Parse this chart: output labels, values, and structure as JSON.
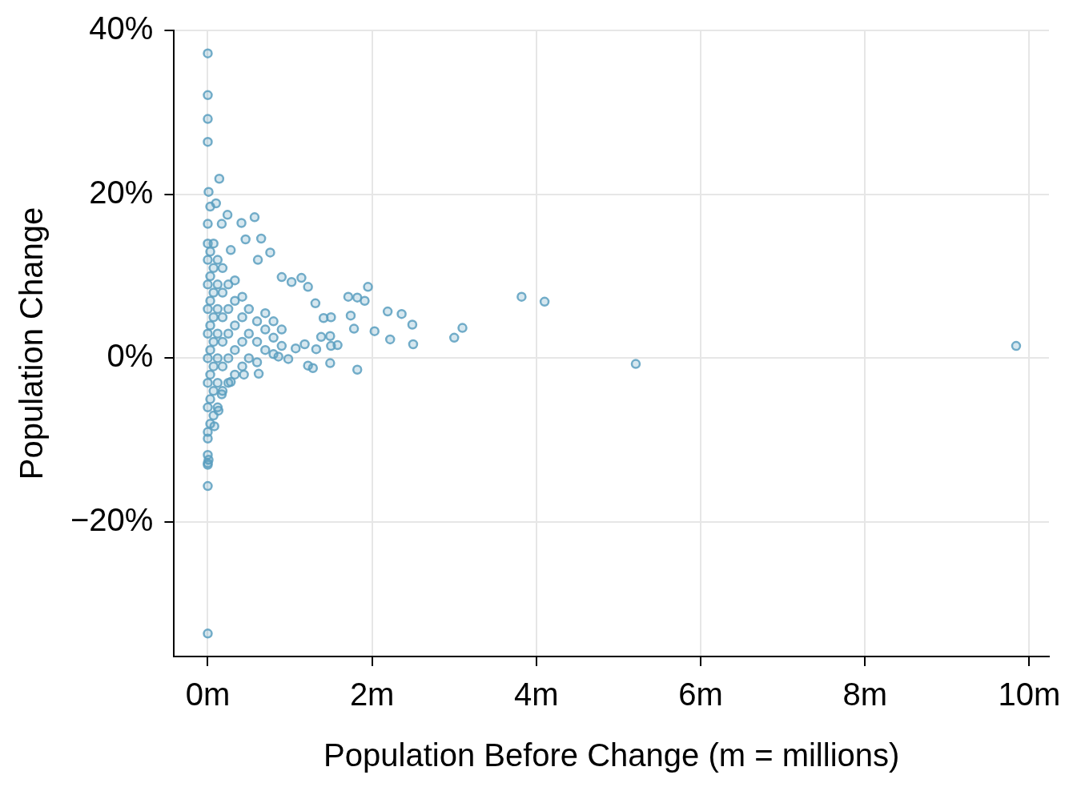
{
  "chart_data": {
    "type": "scatter",
    "xlabel": "Population Before Change (m = millions)",
    "ylabel": "Population Change",
    "xlim": [
      -0.41,
      10.24
    ],
    "ylim": [
      -36.4,
      40
    ],
    "xticks": [
      {
        "value": 0,
        "label": "0m"
      },
      {
        "value": 2,
        "label": "2m"
      },
      {
        "value": 4,
        "label": "4m"
      },
      {
        "value": 6,
        "label": "6m"
      },
      {
        "value": 8,
        "label": "8m"
      },
      {
        "value": 10,
        "label": "10m"
      }
    ],
    "yticks": [
      {
        "value": -20,
        "label": "−20%"
      },
      {
        "value": 0,
        "label": "0%"
      },
      {
        "value": 20,
        "label": "20%"
      },
      {
        "value": 40,
        "label": "40%"
      }
    ],
    "grid": true,
    "marker": "circle",
    "legend": false,
    "series": [
      {
        "color": "#5b9fc0",
        "x": [
          0,
          0,
          0,
          0,
          0.14,
          0.01,
          0.03,
          0.1,
          0.24,
          0.57,
          0.41,
          0.17,
          0,
          0.65,
          0.46,
          0.76,
          0.61,
          0.28,
          0.9,
          1.14,
          1.95,
          1.22,
          1.02,
          1.71,
          1.82,
          1.91,
          3.82,
          4.1,
          1.31,
          2.19,
          2.36,
          1.74,
          1.5,
          1.41,
          2.49,
          3.1,
          2.03,
          1.78,
          3.0,
          1.49,
          1.38,
          2.22,
          2.5,
          1.58,
          1.5,
          1.18,
          9.84,
          1.32,
          1.07,
          5.21,
          1.49,
          1.82,
          1.22,
          1.28,
          0.62,
          0.98,
          0.86,
          0,
          0.01,
          0,
          0,
          0,
          0,
          0,
          0.08,
          0.13,
          0.17,
          0.28,
          0.44,
          0,
          0,
          0,
          0,
          0,
          0,
          0,
          0,
          0,
          0.03,
          0.03,
          0.03,
          0.03,
          0.03,
          0.03,
          0.03,
          0.03,
          0.07,
          0.07,
          0.07,
          0.07,
          0.07,
          0.07,
          0.07,
          0.07,
          0.12,
          0.12,
          0.12,
          0.12,
          0.12,
          0.12,
          0.12,
          0.18,
          0.18,
          0.18,
          0.18,
          0.18,
          0.18,
          0.25,
          0.25,
          0.25,
          0.25,
          0.25,
          0.33,
          0.33,
          0.33,
          0.33,
          0.33,
          0.42,
          0.42,
          0.42,
          0.42,
          0.5,
          0.5,
          0.5,
          0.6,
          0.6,
          0.6,
          0.7,
          0.7,
          0.7,
          0.8,
          0.8,
          0.8,
          0.9,
          0.9
        ],
        "values": [
          37.2,
          32.1,
          29.2,
          26.4,
          21.9,
          20.3,
          18.5,
          18.9,
          17.5,
          17.2,
          16.5,
          16.4,
          16.4,
          14.6,
          14.5,
          12.9,
          12.0,
          13.2,
          9.9,
          9.8,
          8.7,
          8.7,
          9.3,
          7.5,
          7.4,
          7.0,
          7.5,
          6.9,
          6.7,
          5.7,
          5.4,
          5.2,
          5.0,
          4.9,
          4.1,
          3.7,
          3.3,
          3.6,
          2.5,
          2.7,
          2.6,
          2.3,
          1.7,
          1.6,
          1.5,
          1.7,
          1.5,
          1.1,
          1.2,
          -0.7,
          -0.6,
          -1.4,
          -0.9,
          -1.2,
          -1.9,
          -0.1,
          0.2,
          -11.8,
          -12.4,
          -12.8,
          -13.0,
          -15.6,
          -33.6,
          -9.8,
          -8.3,
          -6.4,
          -4.4,
          -2.9,
          -2.0,
          -9,
          -6,
          -3,
          0,
          3,
          6,
          9,
          12,
          14,
          -8,
          -5,
          -2,
          1,
          4,
          7,
          10,
          13,
          -7,
          -4,
          -1,
          2,
          5,
          8,
          11,
          14,
          -6,
          -3,
          0,
          3,
          6,
          9,
          12,
          -4,
          -1,
          2,
          5,
          8,
          11,
          -3,
          0,
          3,
          6,
          9,
          -2,
          1,
          4,
          7,
          9.5,
          -1,
          2,
          5,
          7.5,
          0,
          3,
          6,
          -0.5,
          2,
          4.5,
          1,
          3.5,
          5.5,
          0.5,
          2.5,
          4.5,
          1.5,
          3.5
        ]
      }
    ]
  }
}
